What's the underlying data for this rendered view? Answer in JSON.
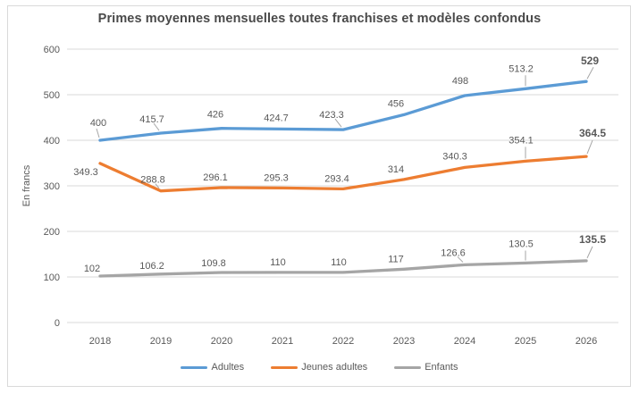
{
  "window": {
    "background": "#ffffff",
    "frame_border_color": "#d9d9d9"
  },
  "chart_data": {
    "type": "line",
    "title": "Primes moyennes mensuelles toutes franchises et modèles confondus",
    "xlabel": "",
    "ylabel": "En francs",
    "categories": [
      "2018",
      "2019",
      "2020",
      "2021",
      "2022",
      "2023",
      "2024",
      "2025",
      "2026"
    ],
    "y_ticks": [
      0,
      100,
      200,
      300,
      400,
      500,
      600
    ],
    "ylim": [
      0,
      600
    ],
    "grid": true,
    "legend_position": "bottom",
    "series": [
      {
        "name": "Adultes",
        "color": "#5B9BD5",
        "values": [
          400,
          415.7,
          426,
          424.7,
          423.3,
          456,
          498,
          513.2,
          529
        ]
      },
      {
        "name": "Jeunes adultes",
        "color": "#ED7D31",
        "values": [
          349.3,
          288.8,
          296.1,
          295.3,
          293.4,
          314,
          340.3,
          354.1,
          364.5
        ]
      },
      {
        "name": "Enfants",
        "color": "#A5A5A5",
        "values": [
          102,
          106.2,
          109.8,
          110,
          110,
          117,
          126.6,
          130.5,
          135.5
        ]
      }
    ],
    "label_color": "#595959",
    "final_label_color": "#FF0000",
    "gridline_color": "#d9d9d9",
    "leader_line_color": "#a6a6a6"
  }
}
